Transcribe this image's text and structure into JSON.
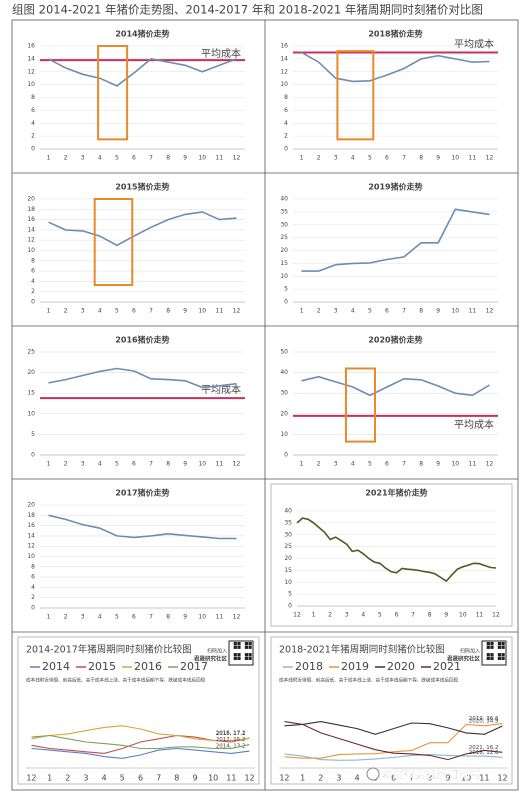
{
  "title": "组图 2014-2021 年猪价走势图、2014-2017 年和 2018-2021 年猪周期同时刻猪价对比图",
  "chart_data": [
    {
      "type": "line",
      "title": "2014猪价走势",
      "color": "#6b8db5",
      "grid": true,
      "x": [
        1,
        2,
        3,
        4,
        5,
        6,
        7,
        8,
        9,
        10,
        11,
        12
      ],
      "xlim": [
        0.5,
        12.5
      ],
      "xticks": [
        1,
        2,
        3,
        4,
        5,
        6,
        7,
        8,
        9,
        10,
        11,
        12
      ],
      "values": [
        14,
        12.6,
        11.6,
        11,
        9.8,
        11.8,
        14,
        13.5,
        13,
        12,
        13,
        14
      ],
      "ylim": [
        0,
        16
      ],
      "yticks": [
        0,
        2,
        4,
        6,
        8,
        10,
        12,
        14,
        16
      ],
      "average": {
        "label": "平均成本",
        "value": 13.8,
        "color": "#c7305e"
      },
      "highlight": {
        "xlim": [
          3.9,
          5.6
        ],
        "ylim": [
          1.5,
          16
        ],
        "color": "#e8892b"
      }
    },
    {
      "type": "line",
      "title": "2018猪价走势",
      "color": "#6b8db5",
      "grid": true,
      "x": [
        1,
        2,
        3,
        4,
        5,
        6,
        7,
        8,
        9,
        10,
        11,
        12
      ],
      "xlim": [
        0.5,
        12.5
      ],
      "xticks": [
        1,
        2,
        3,
        4,
        5,
        6,
        7,
        8,
        9,
        10,
        11,
        12
      ],
      "values": [
        15,
        13.5,
        11,
        10.5,
        10.6,
        11.5,
        12.5,
        14,
        14.5,
        14,
        13.5,
        13.6
      ],
      "ylim": [
        0,
        16
      ],
      "yticks": [
        0,
        2,
        4,
        6,
        8,
        10,
        12,
        14,
        16
      ],
      "average": {
        "label": "平均成本",
        "value": 15,
        "color": "#c7305e"
      },
      "highlight": {
        "xlim": [
          3.1,
          5.2
        ],
        "ylim": [
          1.5,
          15.2
        ],
        "color": "#e8892b"
      }
    },
    {
      "type": "line",
      "title": "2015猪价走势",
      "color": "#6b8db5",
      "grid": true,
      "x": [
        1,
        2,
        3,
        4,
        5,
        6,
        7,
        8,
        9,
        10,
        11,
        12
      ],
      "xlim": [
        0.5,
        12.5
      ],
      "xticks": [
        1,
        2,
        3,
        4,
        5,
        6,
        7,
        8,
        9,
        10,
        11,
        12
      ],
      "values": [
        15.5,
        14,
        13.8,
        12.8,
        11,
        12.8,
        14.5,
        16,
        17,
        17.5,
        16,
        16.3
      ],
      "ylim": [
        0,
        20
      ],
      "yticks": [
        0,
        2,
        4,
        6,
        8,
        10,
        12,
        14,
        16,
        18,
        20
      ],
      "highlight": {
        "xlim": [
          3.7,
          5.9
        ],
        "ylim": [
          3.3,
          20
        ],
        "color": "#e8892b"
      }
    },
    {
      "type": "line",
      "title": "2019猪价走势",
      "color": "#6b8db5",
      "grid": true,
      "x": [
        1,
        2,
        3,
        4,
        5,
        6,
        7,
        8,
        9,
        10,
        11,
        12
      ],
      "xlim": [
        0.5,
        12.5
      ],
      "xticks": [
        1,
        2,
        3,
        4,
        5,
        6,
        7,
        8,
        9,
        10,
        11,
        12
      ],
      "values": [
        12,
        12,
        14.5,
        15,
        15.2,
        16.5,
        17.5,
        23,
        23,
        36,
        35,
        34
      ],
      "ylim": [
        0,
        40
      ],
      "yticks": [
        0,
        5,
        10,
        15,
        20,
        25,
        30,
        35,
        40
      ]
    },
    {
      "type": "line",
      "title": "2016猪价走势",
      "color": "#6b8db5",
      "grid": true,
      "x": [
        1,
        2,
        3,
        4,
        5,
        6,
        7,
        8,
        9,
        10,
        11,
        12
      ],
      "xlim": [
        0.5,
        12.5
      ],
      "xticks": [
        1,
        2,
        3,
        4,
        5,
        6,
        7,
        8,
        9,
        10,
        11,
        12
      ],
      "values": [
        17.5,
        18.3,
        19.3,
        20.3,
        21,
        20.4,
        18.5,
        18.3,
        18,
        16.4,
        16.8,
        17.3
      ],
      "ylim": [
        0,
        25
      ],
      "yticks": [
        0,
        5,
        10,
        15,
        20,
        25
      ],
      "average": {
        "label": "平均成本",
        "value": 13.8,
        "color": "#c7305e"
      }
    },
    {
      "type": "line",
      "title": "2020猪价走势",
      "color": "#6b8db5",
      "grid": true,
      "x": [
        1,
        2,
        3,
        4,
        5,
        6,
        7,
        8,
        9,
        10,
        11,
        12
      ],
      "xlim": [
        0.5,
        12.5
      ],
      "xticks": [
        1,
        2,
        3,
        4,
        5,
        6,
        7,
        8,
        9,
        10,
        11,
        12
      ],
      "values": [
        36,
        38,
        35.5,
        33,
        29,
        33,
        37,
        36.5,
        33.5,
        30,
        29,
        34
      ],
      "ylim": [
        0,
        50
      ],
      "yticks": [
        0,
        10,
        20,
        30,
        40,
        50
      ],
      "average": {
        "label": "平均成本",
        "value": 19,
        "color": "#c7305e"
      },
      "highlight": {
        "xlim": [
          3.6,
          5.3
        ],
        "ylim": [
          6.5,
          42
        ],
        "color": "#e8892b"
      }
    },
    {
      "type": "line",
      "title": "2017猪价走势",
      "color": "#6b8db5",
      "grid": true,
      "x": [
        1,
        2,
        3,
        4,
        5,
        6,
        7,
        8,
        9,
        10,
        11,
        12
      ],
      "xlim": [
        0.5,
        12.5
      ],
      "xticks": [
        1,
        2,
        3,
        4,
        5,
        6,
        7,
        8,
        9,
        10,
        11,
        12
      ],
      "values": [
        18,
        17.2,
        16.2,
        15.5,
        14,
        13.7,
        14,
        14.4,
        14.1,
        13.8,
        13.5,
        13.5
      ],
      "ylim": [
        0,
        20
      ],
      "yticks": [
        0,
        2,
        4,
        6,
        8,
        10,
        12,
        14,
        16,
        18,
        20
      ]
    },
    {
      "type": "line",
      "title": "2021年猪价走势",
      "color": "#4f5a24",
      "grid": true,
      "frame": true,
      "x": [
        0,
        0.33,
        0.67,
        1,
        1.33,
        1.67,
        2,
        2.33,
        2.67,
        3,
        3.33,
        3.67,
        4,
        4.33,
        4.67,
        5,
        5.33,
        5.67,
        6,
        6.33,
        6.67,
        7,
        7.33,
        7.67,
        8,
        8.33,
        8.67,
        9,
        9.33,
        9.67,
        10,
        10.33,
        10.67,
        11,
        11.33,
        11.67,
        12
      ],
      "values": [
        35,
        37,
        36.5,
        35,
        33,
        31,
        28,
        29,
        27.5,
        26,
        23,
        23.5,
        22,
        20,
        18.5,
        18,
        16,
        14.5,
        14,
        15.8,
        15.5,
        15.3,
        15,
        14.5,
        14.2,
        13.5,
        12,
        10.5,
        13,
        15.5,
        16.5,
        17.2,
        18,
        17.8,
        17,
        16.2,
        16
      ],
      "xlim": [
        0,
        12
      ],
      "xticks": [
        {
          "value": 0,
          "label": "12"
        },
        1,
        2,
        3,
        4,
        5,
        6,
        7,
        8,
        9,
        10,
        11,
        12
      ],
      "ylim": [
        0,
        40
      ],
      "yticks": [
        0,
        5,
        10,
        15,
        20,
        25,
        30,
        35,
        40
      ]
    },
    {
      "type": "multiline",
      "title": "2014-2017年猪周期同时刻猪价比较图",
      "frame": true,
      "subtitle": "成本线附近徘徊、前高后低、高于成本线上涨、高于成本线后期下探、跌破成本线后回稳",
      "badge": [
        "扫码加入",
        "君晟研究社区"
      ],
      "x": [
        0,
        1,
        2,
        3,
        4,
        5,
        6,
        7,
        8,
        9,
        10,
        11,
        12
      ],
      "xlim": [
        -0.3,
        12.3
      ],
      "xticks": [
        {
          "value": 0,
          "label": "12"
        },
        1,
        2,
        3,
        4,
        5,
        6,
        7,
        8,
        9,
        10,
        11,
        12
      ],
      "ylim": [
        8,
        24
      ],
      "series": [
        {
          "name": "2014",
          "color": "#5b7fc4",
          "end_label": "2014, 13.2",
          "values": [
            14,
            13.5,
            13,
            12.5,
            11.5,
            11,
            12,
            13.5,
            14,
            13.5,
            13,
            12.5,
            13.2
          ]
        },
        {
          "name": "2015",
          "color": "#c0504d",
          "end_label": "2015, 17.2",
          "values": [
            15,
            14,
            13.5,
            13,
            12.5,
            14,
            16,
            17,
            18,
            17.5,
            16.5,
            16,
            17.2
          ]
        },
        {
          "name": "2016",
          "color": "#d9a441",
          "end_label": "2016, 17.1",
          "values": [
            17,
            18,
            18.5,
            19.5,
            20.5,
            21,
            20,
            18.5,
            18,
            17,
            16.5,
            16.5,
            17.1
          ]
        },
        {
          "name": "2017",
          "color": "#7f9f5f",
          "end_label": "2017, 15.2",
          "values": [
            17.5,
            18,
            17,
            16,
            15.5,
            15,
            14,
            14,
            14.5,
            14.5,
            14,
            14,
            15.2
          ]
        }
      ]
    },
    {
      "type": "multiline",
      "title": "2018-2021年猪周期同时刻猪价比较图",
      "frame": true,
      "subtitle": "成本线附近徘徊、前高后低、高于成本线上涨、高于成本线后期下探、跌破成本线后回稳",
      "badge": [
        "扫码加入",
        "君晟研究社区"
      ],
      "x": [
        0,
        1,
        2,
        3,
        4,
        5,
        6,
        7,
        8,
        9,
        10,
        11,
        12
      ],
      "xlim": [
        -0.3,
        12.3
      ],
      "xticks": [
        {
          "value": 0,
          "label": "12"
        },
        1,
        2,
        3,
        4,
        5,
        6,
        7,
        8,
        9,
        10,
        11,
        12
      ],
      "ylim": [
        5,
        42
      ],
      "series": [
        {
          "name": "2018",
          "color": "#8fb4d9",
          "end_label": "2018, 12.6",
          "values": [
            15,
            13.5,
            11,
            10.5,
            10.6,
            11.5,
            12.5,
            14,
            14.5,
            14,
            13.5,
            13.5,
            12.6
          ]
        },
        {
          "name": "2019",
          "color": "#e8963c",
          "end_label": "2019, 36.6",
          "values": [
            13,
            12,
            12,
            14.5,
            15,
            15.2,
            16.5,
            17.5,
            23,
            23,
            36,
            35,
            36.6
          ]
        },
        {
          "name": "2020",
          "color": "#333333",
          "end_label": "2020, 34.9",
          "values": [
            35,
            36,
            38,
            35.5,
            33,
            29,
            33,
            37,
            36.5,
            33.5,
            30,
            29,
            34.9
          ]
        },
        {
          "name": "2021",
          "color": "#6b2a2a",
          "end_label": "2021, 16.2",
          "values": [
            38,
            36,
            30,
            26,
            22,
            18,
            15.5,
            15,
            14,
            11,
            15,
            17.5,
            16.2
          ]
        }
      ]
    }
  ],
  "watermark": "君晟研究社区订阅号"
}
